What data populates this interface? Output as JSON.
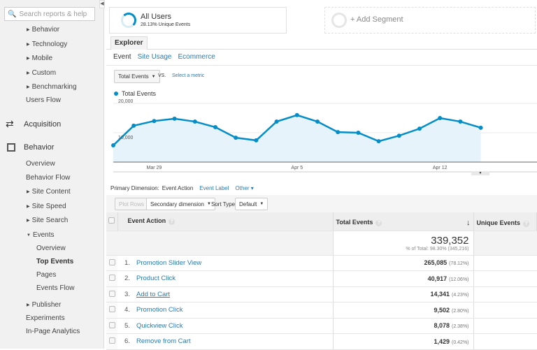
{
  "sidebar": {
    "search_placeholder": "Search reports & help",
    "audience_items": [
      "Behavior",
      "Technology",
      "Mobile",
      "Custom",
      "Benchmarking"
    ],
    "users_flow": "Users Flow",
    "acquisition": "Acquisition",
    "behavior": "Behavior",
    "behavior_items": {
      "overview": "Overview",
      "flow": "Behavior Flow",
      "site_content": "Site Content",
      "site_speed": "Site Speed",
      "site_search": "Site Search",
      "events": "Events",
      "publisher": "Publisher"
    },
    "events_items": [
      "Overview",
      "Top Events",
      "Pages",
      "Events Flow"
    ],
    "experiments": "Experiments",
    "in_page": "In-Page Analytics"
  },
  "segments": {
    "all_users": "All Users",
    "all_users_sub": "28.13% Unique Events",
    "add": "+ Add Segment"
  },
  "explorer": {
    "tab": "Explorer",
    "subtabs": [
      "Event",
      "Site Usage",
      "Ecommerce"
    ],
    "metric": "Total Events",
    "vs": "VS.",
    "select_metric": "Select a metric"
  },
  "chart_data": {
    "type": "area",
    "series": [
      {
        "name": "Total Events",
        "values": [
          5700,
          12400,
          14000,
          14800,
          13800,
          11900,
          8300,
          7400,
          13800,
          16000,
          13800,
          10200,
          10000,
          7100,
          9000,
          11400,
          15000,
          13800,
          11700
        ]
      }
    ],
    "x": [
      "Mar 27",
      "Mar 28",
      "Mar 29",
      "Mar 30",
      "Mar 31",
      "Apr 1",
      "Apr 2",
      "Apr 3",
      "Apr 4",
      "Apr 5",
      "Apr 6",
      "Apr 7",
      "Apr 8",
      "Apr 9",
      "Apr 10",
      "Apr 11",
      "Apr 12",
      "Apr 13",
      "Apr 14"
    ],
    "x_tick_labels": [
      "Mar 29",
      "Apr 5",
      "Apr 12"
    ],
    "y_tick_labels": [
      "20,000",
      "10,000"
    ],
    "ylim": [
      0,
      20000
    ],
    "legend": "top-left",
    "color": "#058dc7"
  },
  "dimension": {
    "label": "Primary Dimension:",
    "active": "Event Action",
    "options": [
      "Event Label",
      "Other"
    ]
  },
  "toolbar": {
    "plot_rows": "Plot Rows",
    "secondary": "Secondary dimension",
    "sort_type": "Sort Type:",
    "sort_value": "Default"
  },
  "table": {
    "headers": [
      "Event Action",
      "Total Events",
      "Unique Events"
    ],
    "total": "339,352",
    "total_sub": "% of Total: 98.30% (345,216)",
    "rows": [
      {
        "n": "1.",
        "action": "Promotion Slider View",
        "value": "265,085",
        "pct": "(78.12%)"
      },
      {
        "n": "2.",
        "action": "Product Click",
        "value": "40,917",
        "pct": "(12.06%)"
      },
      {
        "n": "3.",
        "action": "Add to Cart",
        "value": "14,341",
        "pct": "(4.23%)"
      },
      {
        "n": "4.",
        "action": "Promotion Click",
        "value": "9,502",
        "pct": "(2.80%)"
      },
      {
        "n": "5.",
        "action": "Quickview Click",
        "value": "8,078",
        "pct": "(2.38%)"
      },
      {
        "n": "6.",
        "action": "Remove from Cart",
        "value": "1,429",
        "pct": "(0.42%)"
      }
    ]
  }
}
